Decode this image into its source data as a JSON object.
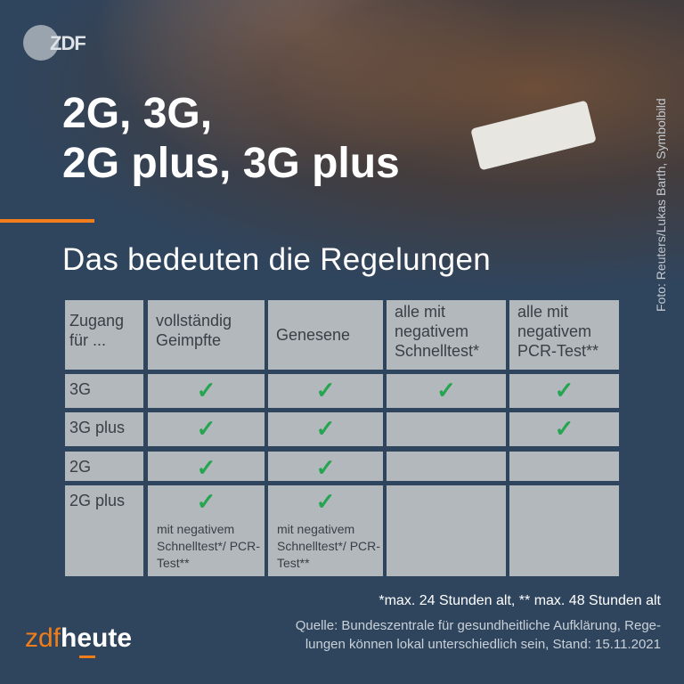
{
  "logo_text": "ZDF",
  "title": [
    "2G, 3G,",
    "2G plus, 3G plus"
  ],
  "subtitle": "Das bedeuten die Regelungen",
  "photo_credit": "Foto: Reuters/Lukas Barth, Symbolbild",
  "colors": {
    "background": "#2f455e",
    "accent": "#f07d19",
    "check": "#25a550",
    "cell": "#b3b8bd"
  },
  "table": {
    "headers": [
      "Zugang für ...",
      "vollständig Geimpfte",
      "Genesene",
      "alle mit negativem Schnelltest*",
      "alle mit negativem PCR-Test**"
    ],
    "rows": [
      {
        "label": "3G",
        "checks": [
          true,
          true,
          true,
          true
        ],
        "notes": [
          "",
          "",
          "",
          ""
        ]
      },
      {
        "label": "3G plus",
        "checks": [
          true,
          true,
          false,
          true
        ],
        "notes": [
          "",
          "",
          "",
          ""
        ]
      },
      {
        "label": "2G",
        "checks": [
          true,
          true,
          false,
          false
        ],
        "notes": [
          "",
          "",
          "",
          ""
        ]
      },
      {
        "label": "2G plus",
        "checks": [
          true,
          true,
          false,
          false
        ],
        "notes": [
          "mit negativem Schnelltest*/ PCR-Test**",
          "mit negativem Schnelltest*/ PCR-Test**",
          "",
          ""
        ]
      }
    ]
  },
  "footnote": "*max. 24 Stunden alt, ** max. 48 Stunden alt",
  "source": [
    "Quelle: Bundeszentrale für gesundheitliche Aufklärung, Rege-",
    "lungen können lokal unterschiedlich sein, Stand: 15.11.2021"
  ],
  "brand": {
    "part1": "zdf",
    "part2": "heute"
  }
}
